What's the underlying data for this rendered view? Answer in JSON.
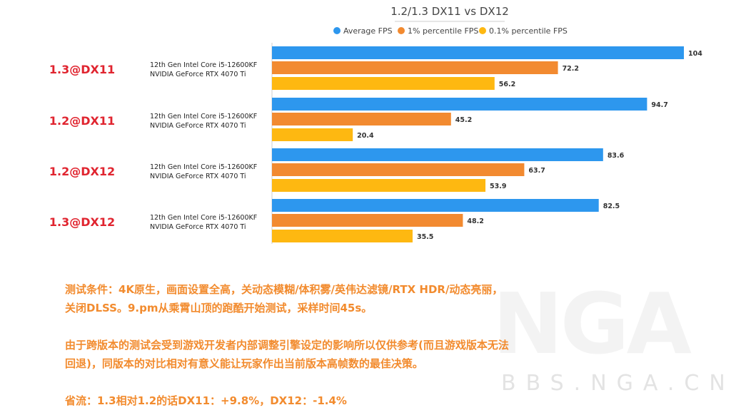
{
  "chart_data": {
    "type": "bar",
    "orientation": "horizontal",
    "title": "1.2/1.3 DX11 vs DX12",
    "legend_position": "top",
    "categories": [
      "1.3@DX11",
      "1.2@DX11",
      "1.2@DX12",
      "1.3@DX12"
    ],
    "hardware": [
      "12th Gen Intel Core i5-12600KF",
      "NVIDIA GeForce RTX 4070 Ti"
    ],
    "series": [
      {
        "name": "Average FPS",
        "color": "#2d97ee",
        "values": [
          104,
          94.7,
          83.6,
          82.5
        ]
      },
      {
        "name": "1% percentile FPS",
        "color": "#f28a30",
        "values": [
          72.2,
          45.2,
          63.7,
          48.2
        ]
      },
      {
        "name": "0.1% percentile FPS",
        "color": "#feb811",
        "values": [
          56.2,
          20.4,
          53.9,
          35.5
        ]
      }
    ],
    "xlim": [
      0,
      104
    ],
    "grid": false
  },
  "colors": {
    "label_red": "#e0242f",
    "note_orange": "#f28b2e"
  },
  "notes": {
    "line1": "测试条件：4K原生，画面设置全高，关动态模糊/体积雾/英伟达滤镜/RTX HDR/动态亮丽，",
    "line2": "关闭DLSS。9.pm从乘霄山顶的跑酷开始测试，采样时间45s。",
    "line3": "由于跨版本的测试会受到游戏开发者内部调整引擎设定的影响所以仅供参考(而且游戏版本无法",
    "line4": "回退)，同版本的对比相对有意义能让玩家作出当前版本高帧数的最佳决策。",
    "line5": "省流：1.3相对1.2的话DX11：+9.8%，DX12：-1.4%"
  },
  "watermark": {
    "logo": "NGA",
    "url": "BBS.NGA.CN"
  }
}
